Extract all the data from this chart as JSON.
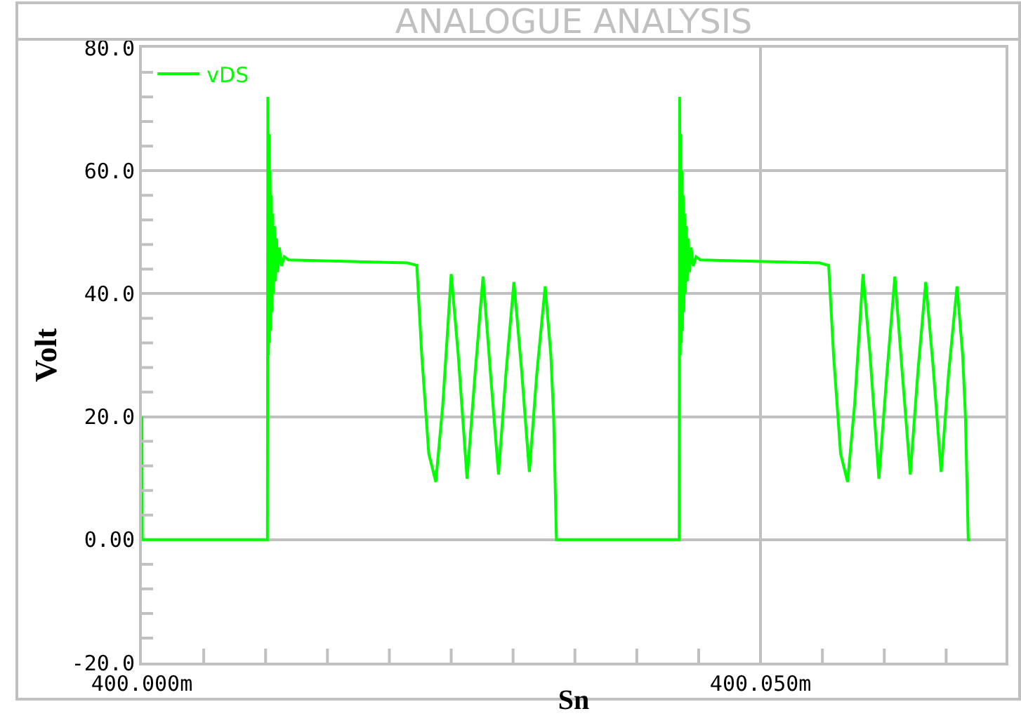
{
  "chart_data": {
    "type": "line",
    "title": "ANALOGUE ANALYSIS",
    "xlabel": "Sn",
    "ylabel": "Volt",
    "legend": "top left",
    "grid": true,
    "marker": "none",
    "line_style": "solid",
    "xlim": [
      400.0,
      400.0698
    ],
    "ylim": [
      -20,
      80
    ],
    "xticks": [
      {
        "value": 400.0,
        "label": "400.000m"
      },
      {
        "value": 400.005,
        "label": null
      },
      {
        "value": 400.01,
        "label": null
      },
      {
        "value": 400.015,
        "label": null
      },
      {
        "value": 400.02,
        "label": null
      },
      {
        "value": 400.025,
        "label": null
      },
      {
        "value": 400.03,
        "label": null
      },
      {
        "value": 400.035,
        "label": null
      },
      {
        "value": 400.04,
        "label": null
      },
      {
        "value": 400.045,
        "label": null
      },
      {
        "value": 400.05,
        "label": "400.050m"
      },
      {
        "value": 400.055,
        "label": null
      },
      {
        "value": 400.06,
        "label": null
      },
      {
        "value": 400.065,
        "label": null
      }
    ],
    "yticks": [
      {
        "value": -20,
        "label": "-20.0"
      },
      {
        "value": -16,
        "label": null
      },
      {
        "value": -12,
        "label": null
      },
      {
        "value": -8,
        "label": null
      },
      {
        "value": -4,
        "label": null
      },
      {
        "value": 0,
        "label": "0.00"
      },
      {
        "value": 4,
        "label": null
      },
      {
        "value": 8,
        "label": null
      },
      {
        "value": 12,
        "label": null
      },
      {
        "value": 16,
        "label": null
      },
      {
        "value": 20,
        "label": "20.0"
      },
      {
        "value": 24,
        "label": null
      },
      {
        "value": 28,
        "label": null
      },
      {
        "value": 32,
        "label": null
      },
      {
        "value": 36,
        "label": null
      },
      {
        "value": 40,
        "label": "40.0"
      },
      {
        "value": 44,
        "label": null
      },
      {
        "value": 48,
        "label": null
      },
      {
        "value": 52,
        "label": null
      },
      {
        "value": 56,
        "label": null
      },
      {
        "value": 60,
        "label": "60.0"
      },
      {
        "value": 64,
        "label": null
      },
      {
        "value": 68,
        "label": null
      },
      {
        "value": 72,
        "label": null
      },
      {
        "value": 76,
        "label": null
      },
      {
        "value": 80,
        "label": "80.0"
      }
    ],
    "series": [
      {
        "name": "vDS",
        "color": "#00ff00",
        "x": [
          400.0,
          400.00003,
          400.010147,
          400.010181,
          400.010227,
          400.010272,
          400.010317,
          400.010363,
          400.010408,
          400.010465,
          400.010522,
          400.010578,
          400.010646,
          400.010714,
          400.010794,
          400.010884,
          400.010986,
          400.011111,
          400.011281,
          400.011508,
          400.011848,
          400.021485,
          400.022222,
          400.022619,
          400.023186,
          400.023753,
          400.02432,
          400.025,
          400.025567,
          400.026281,
          400.026927,
          400.027574,
          400.028175,
          400.028821,
          400.029422,
          400.030068,
          400.030669,
          400.031315,
          400.031916,
          400.032596,
          400.03305,
          400.033277,
          400.033503,
          400.043427,
          400.043461,
          400.043507,
          400.043552,
          400.043597,
          400.043643,
          400.043688,
          400.043745,
          400.043802,
          400.043858,
          400.043926,
          400.043994,
          400.044074,
          400.044164,
          400.044266,
          400.044391,
          400.044561,
          400.044788,
          400.045128,
          400.054765,
          400.055502,
          400.055899,
          400.056466,
          400.057033,
          400.0576,
          400.05828,
          400.058847,
          400.059561,
          400.060207,
          400.060854,
          400.061455,
          400.062101,
          400.062702,
          400.063348,
          400.063949,
          400.064595,
          400.065196,
          400.065876,
          400.06633,
          400.066557,
          400.066783,
          400.06695
        ],
        "values": [
          20,
          0,
          0,
          72,
          30,
          66,
          32,
          60,
          34,
          56,
          37,
          53,
          40,
          51,
          42,
          49,
          43.5,
          47.5,
          44.5,
          46,
          45.5,
          45,
          44.6,
          30,
          14,
          9.4,
          22,
          43.2,
          30,
          9.9,
          27,
          42.8,
          27,
          10.6,
          27,
          41.9,
          28,
          11,
          27,
          41.2,
          30,
          20,
          0,
          0,
          72,
          30,
          66,
          32,
          60,
          34,
          56,
          37,
          53,
          40,
          51,
          42,
          49,
          43.5,
          47.5,
          44.5,
          46,
          45.5,
          45,
          44.6,
          30,
          14,
          9.4,
          22,
          43.2,
          30,
          9.9,
          27,
          42.8,
          27,
          10.6,
          27,
          41.9,
          28,
          11,
          27,
          41.2,
          30,
          20,
          0,
          0
        ]
      }
    ]
  }
}
